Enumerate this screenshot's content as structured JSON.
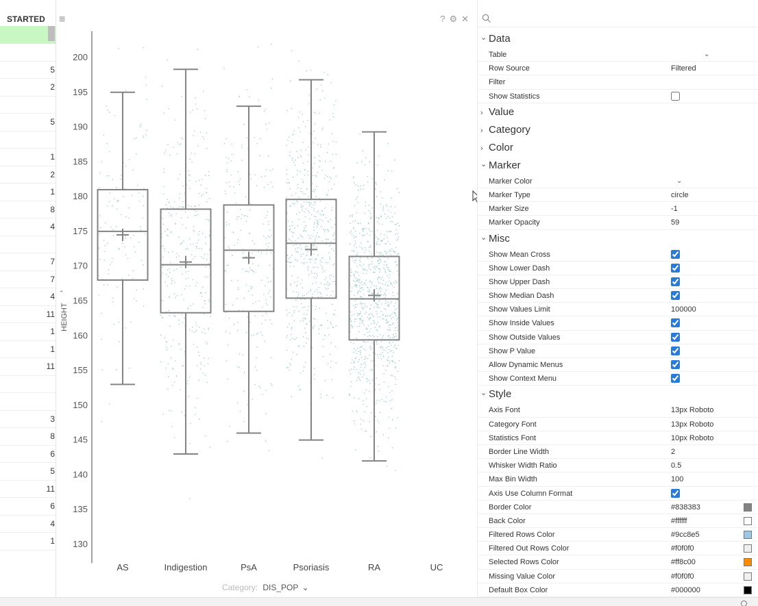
{
  "grid": {
    "header": "STARTED",
    "rows": [
      "",
      "5",
      "2",
      "",
      "5",
      "",
      "1",
      "2",
      "1",
      "8",
      "4",
      "",
      "7",
      "7",
      "4",
      "11",
      "1",
      "1",
      "11",
      "",
      "",
      "3",
      "8",
      "6",
      "5",
      "11",
      "6",
      "4",
      "1"
    ]
  },
  "viewer": {
    "help_icon": "?",
    "category_label": "Category:",
    "category_value": "DIS_POP"
  },
  "chart_data": {
    "type": "box",
    "ylabel": "HEIGHT",
    "ylim": [
      127.5,
      203
    ],
    "yticks": [
      130,
      135,
      140,
      145,
      150,
      155,
      160,
      165,
      170,
      175,
      180,
      185,
      190,
      195,
      200
    ],
    "categories": [
      "AS",
      "Indigestion",
      "PsA",
      "Psoriasis",
      "RA",
      "UC"
    ],
    "boxes": [
      {
        "category": "AS",
        "min": 153,
        "q1": 168,
        "median": 175,
        "q3": 181,
        "max": 195,
        "mean": 174.5
      },
      {
        "category": "Indigestion",
        "min": 143,
        "q1": 163.3,
        "median": 170.2,
        "q3": 178.2,
        "max": 198.3,
        "mean": 170.6
      },
      {
        "category": "PsA",
        "min": 146,
        "q1": 163.5,
        "median": 172.3,
        "q3": 178.8,
        "max": 193,
        "mean": 171.2
      },
      {
        "category": "Psoriasis",
        "min": 145,
        "q1": 165.4,
        "median": 173.3,
        "q3": 179.6,
        "max": 196.8,
        "mean": 172.4
      },
      {
        "category": "RA",
        "min": 142,
        "q1": 159.4,
        "median": 165.3,
        "q3": 171.4,
        "max": 189.3,
        "mean": 165.8
      }
    ],
    "point_density": [
      0.5,
      1.3,
      0.9,
      2.2,
      3.2,
      0
    ]
  },
  "props": {
    "sections": [
      {
        "title": "Data",
        "open": true,
        "rows": [
          {
            "label": "Table",
            "type": "dropdown",
            "value": ""
          },
          {
            "label": "Row Source",
            "type": "text",
            "value": "Filtered"
          },
          {
            "label": "Filter",
            "type": "text",
            "value": ""
          },
          {
            "label": "Show Statistics",
            "type": "check",
            "checked": false
          }
        ]
      },
      {
        "title": "Value",
        "open": false,
        "rows": []
      },
      {
        "title": "Category",
        "open": false,
        "rows": []
      },
      {
        "title": "Color",
        "open": false,
        "rows": []
      },
      {
        "title": "Marker",
        "open": true,
        "rows": [
          {
            "label": "Marker Color",
            "type": "dropdown",
            "value": ""
          },
          {
            "label": "Marker Type",
            "type": "text",
            "value": "circle"
          },
          {
            "label": "Marker Size",
            "type": "text",
            "value": "-1"
          },
          {
            "label": "Marker Opacity",
            "type": "text",
            "value": "59"
          }
        ]
      },
      {
        "title": "Misc",
        "open": true,
        "rows": [
          {
            "label": "Show Mean Cross",
            "type": "check",
            "checked": true
          },
          {
            "label": "Show Lower Dash",
            "type": "check",
            "checked": true
          },
          {
            "label": "Show Upper Dash",
            "type": "check",
            "checked": true
          },
          {
            "label": "Show Median Dash",
            "type": "check",
            "checked": true
          },
          {
            "label": "Show Values Limit",
            "type": "text",
            "value": "100000"
          },
          {
            "label": "Show Inside Values",
            "type": "check",
            "checked": true
          },
          {
            "label": "Show Outside Values",
            "type": "check",
            "checked": true
          },
          {
            "label": "Show P Value",
            "type": "check",
            "checked": true
          },
          {
            "label": "Allow Dynamic Menus",
            "type": "check",
            "checked": true
          },
          {
            "label": "Show Context Menu",
            "type": "check",
            "checked": true
          }
        ]
      },
      {
        "title": "Style",
        "open": true,
        "rows": [
          {
            "label": "Axis Font",
            "type": "text",
            "value": "13px Roboto"
          },
          {
            "label": "Category Font",
            "type": "text",
            "value": "13px Roboto"
          },
          {
            "label": "Statistics Font",
            "type": "text",
            "value": "10px Roboto"
          },
          {
            "label": "Border Line Width",
            "type": "text",
            "value": "2"
          },
          {
            "label": "Whisker Width Ratio",
            "type": "text",
            "value": "0.5"
          },
          {
            "label": "Max Bin Width",
            "type": "text",
            "value": "100"
          },
          {
            "label": "Axis Use Column Format",
            "type": "check",
            "checked": true
          },
          {
            "label": "Border Color",
            "type": "color",
            "value": "#838383",
            "color": "#838383"
          },
          {
            "label": "Back Color",
            "type": "color",
            "value": "#ffffff",
            "color": "#ffffff"
          },
          {
            "label": "Filtered Rows Color",
            "type": "color",
            "value": "#9cc8e5",
            "color": "#9cc8e5"
          },
          {
            "label": "Filtered Out Rows Color",
            "type": "color",
            "value": "#f0f0f0",
            "color": "#f0f0f0"
          },
          {
            "label": "Selected Rows Color",
            "type": "color",
            "value": "#ff8c00",
            "color": "#ff8c00"
          },
          {
            "label": "Missing Value Color",
            "type": "color",
            "value": "#f0f0f0",
            "color": "#f0f0f0"
          },
          {
            "label": "Default Box Color",
            "type": "color",
            "value": "#000000",
            "color": "#000000"
          }
        ]
      }
    ]
  }
}
